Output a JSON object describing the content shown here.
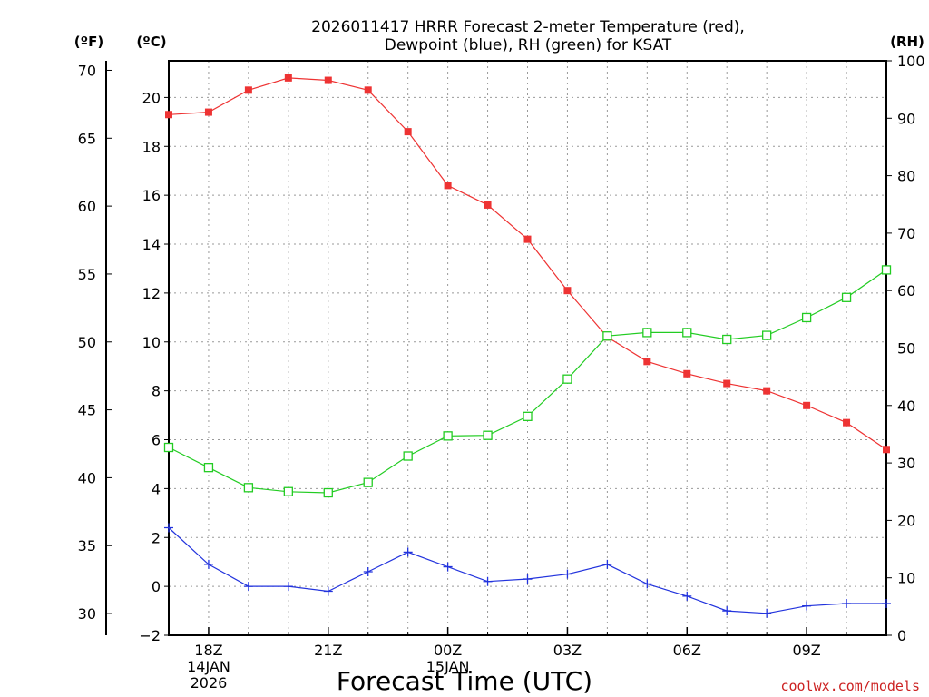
{
  "chart_data": {
    "type": "line",
    "title_line1": "2026011417 HRRR Forecast 2-meter Temperature (red),",
    "title_line2": "Dewpoint (blue), RH (green) for KSAT",
    "xlabel": "Forecast Time (UTC)",
    "unit_f": "(ºF)",
    "unit_c": "(ºC)",
    "unit_rh": "(RH)",
    "credit": "coolwx.com/models",
    "x_hours": [
      17,
      18,
      19,
      20,
      21,
      22,
      23,
      24,
      25,
      26,
      27,
      28,
      29,
      30,
      31,
      32,
      33,
      34,
      35
    ],
    "x_ticks": [
      {
        "hour": 18,
        "lines": [
          "18Z",
          "14JAN",
          "2026"
        ]
      },
      {
        "hour": 21,
        "lines": [
          "21Z"
        ]
      },
      {
        "hour": 24,
        "lines": [
          "00Z",
          "15JAN"
        ]
      },
      {
        "hour": 27,
        "lines": [
          "03Z"
        ]
      },
      {
        "hour": 30,
        "lines": [
          "06Z"
        ]
      },
      {
        "hour": 33,
        "lines": [
          "09Z"
        ]
      }
    ],
    "xlim": [
      17,
      35
    ],
    "ylim_c": [
      -2,
      21.5
    ],
    "ylim_rh": [
      0,
      100
    ],
    "yticks_c": [
      "-2",
      "0",
      "2",
      "4",
      "6",
      "8",
      "10",
      "12",
      "14",
      "16",
      "18",
      "20"
    ],
    "yticks_f": [
      "30",
      "35",
      "40",
      "45",
      "50",
      "55",
      "60",
      "65",
      "70"
    ],
    "yticks_rh": [
      "0",
      "10",
      "20",
      "30",
      "40",
      "50",
      "60",
      "70",
      "80",
      "90",
      "100"
    ],
    "series": [
      {
        "name": "Temperature",
        "axis": "c",
        "color": "#ee3333",
        "marker": "filled-square",
        "values": [
          19.3,
          19.4,
          20.3,
          20.8,
          20.7,
          20.3,
          18.6,
          16.4,
          15.6,
          14.2,
          12.1,
          10.2,
          9.2,
          8.7,
          8.3,
          8.0,
          7.4,
          6.7,
          5.6
        ]
      },
      {
        "name": "Dewpoint",
        "axis": "c",
        "color": "#2233dd",
        "marker": "plus",
        "values": [
          2.4,
          0.9,
          0.0,
          0.0,
          -0.2,
          0.6,
          1.4,
          0.8,
          0.2,
          0.3,
          0.5,
          0.9,
          0.1,
          -0.4,
          -1.0,
          -1.1,
          -0.8,
          -0.7,
          -0.7
        ]
      },
      {
        "name": "RH",
        "axis": "rh",
        "color": "#22cc22",
        "marker": "open-square",
        "values": [
          32.7,
          29.2,
          25.7,
          25.0,
          24.8,
          26.6,
          31.2,
          34.7,
          34.8,
          38.1,
          44.6,
          52.1,
          52.7,
          52.7,
          51.5,
          52.2,
          55.3,
          58.8,
          63.6
        ]
      }
    ]
  }
}
